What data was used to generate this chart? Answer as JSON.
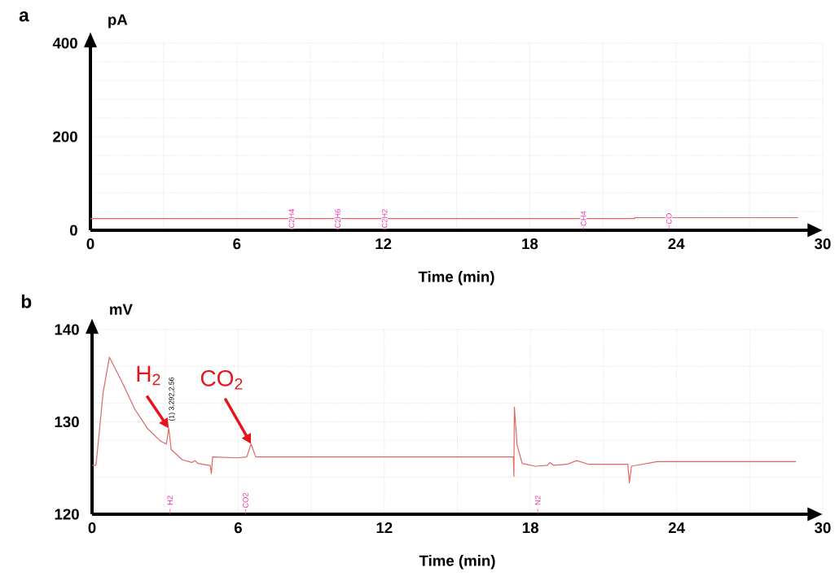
{
  "chart_data": [
    {
      "type": "line",
      "title": "a",
      "xlabel": "Time (min)",
      "ylabel": "pA",
      "series": [
        {
          "color": "#e06666",
          "x": [
            0,
            22.3,
            22.3,
            29.0
          ],
          "values": [
            25,
            25,
            27,
            27
          ]
        }
      ],
      "xlim": [
        0,
        30
      ],
      "ylim": [
        0,
        400
      ],
      "xticks": [
        0,
        {
          "value": 3,
          "label": null
        },
        6,
        {
          "value": 9,
          "label": null
        },
        12,
        {
          "value": 15,
          "label": null
        },
        18,
        {
          "value": 21,
          "label": null
        },
        24,
        {
          "value": 27,
          "label": null
        },
        30
      ],
      "yticks": [
        0,
        {
          "value": 40,
          "label": null
        },
        {
          "value": 80,
          "label": null
        },
        {
          "value": 120,
          "label": null
        },
        {
          "value": 160,
          "label": null
        },
        200,
        {
          "value": 240,
          "label": null
        },
        {
          "value": 280,
          "label": null
        },
        {
          "value": 320,
          "label": null
        },
        {
          "value": 360,
          "label": null
        },
        400
      ],
      "grid": true,
      "marker": "none",
      "line_style": "solid",
      "annotations": [
        {
          "text": "C2H4",
          "x": 8.24,
          "y": 25
        },
        {
          "text": "C2H6",
          "x": 10.13,
          "y": 25
        },
        {
          "text": "C2H2",
          "x": 12.05,
          "y": 25
        },
        {
          "text": "CH4",
          "x": 20.2,
          "y": 25
        },
        {
          "text": "CO",
          "x": 23.7,
          "y": 25
        }
      ]
    },
    {
      "type": "line",
      "title": "b",
      "xlabel": "Time (min)",
      "ylabel": "mV",
      "series": [
        {
          "color": "#e06666",
          "x": [
            0,
            0.16,
            0.29,
            0.45,
            0.71,
            1.2,
            1.75,
            2.27,
            2.82,
            3.05,
            3.15,
            3.25,
            3.7,
            4.1,
            4.22,
            4.35,
            4.77,
            4.85,
            4.9,
            4.95,
            5.97,
            6.35,
            6.53,
            6.72,
            17.3,
            17.32,
            17.34,
            17.45,
            17.66,
            18.2,
            18.7,
            18.8,
            18.95,
            19.5,
            19.9,
            20.4,
            22.0,
            22.06,
            22.15,
            23.2,
            28.9
          ],
          "values": [
            125.3,
            125.3,
            128.7,
            133.1,
            137.0,
            134.5,
            131.4,
            129.3,
            127.9,
            127.6,
            129.3,
            127.0,
            125.9,
            125.6,
            125.8,
            125.5,
            125.3,
            125.3,
            124.4,
            126.2,
            126.1,
            126.2,
            127.6,
            126.2,
            126.2,
            124.1,
            131.6,
            127.5,
            125.5,
            125.2,
            125.3,
            125.6,
            125.3,
            125.4,
            125.8,
            125.4,
            125.4,
            123.4,
            125.2,
            125.7,
            125.7
          ]
        }
      ],
      "xlim": [
        0,
        30
      ],
      "ylim": [
        120,
        140
      ],
      "xticks": [
        0,
        {
          "value": 3,
          "label": null
        },
        6,
        {
          "value": 9,
          "label": null
        },
        12,
        {
          "value": 15,
          "label": null
        },
        18,
        {
          "value": 21,
          "label": null
        },
        24,
        {
          "value": 27,
          "label": null
        },
        30
      ],
      "yticks": [
        120,
        {
          "value": 124,
          "label": null
        },
        {
          "value": 128,
          "label": null
        },
        130,
        {
          "value": 132,
          "label": null
        },
        {
          "value": 136,
          "label": null
        },
        140
      ],
      "grid": true,
      "marker": "none",
      "line_style": "solid",
      "annotations": [
        {
          "text": "H$_{2}$",
          "x": 3.15,
          "y": 129.3
        },
        {
          "text": "CO$_{2}$",
          "x": 6.53,
          "y": 127.6
        },
        {
          "text": "(1) 3.292,2.56",
          "x": 3.15,
          "y": 129.3
        },
        {
          "text": "H2",
          "x": 3.2,
          "y": 121.5
        },
        {
          "text": "CO2",
          "x": 6.3,
          "y": 121.5
        },
        {
          "text": "N2",
          "x": 18.3,
          "y": 121.5
        }
      ]
    }
  ]
}
